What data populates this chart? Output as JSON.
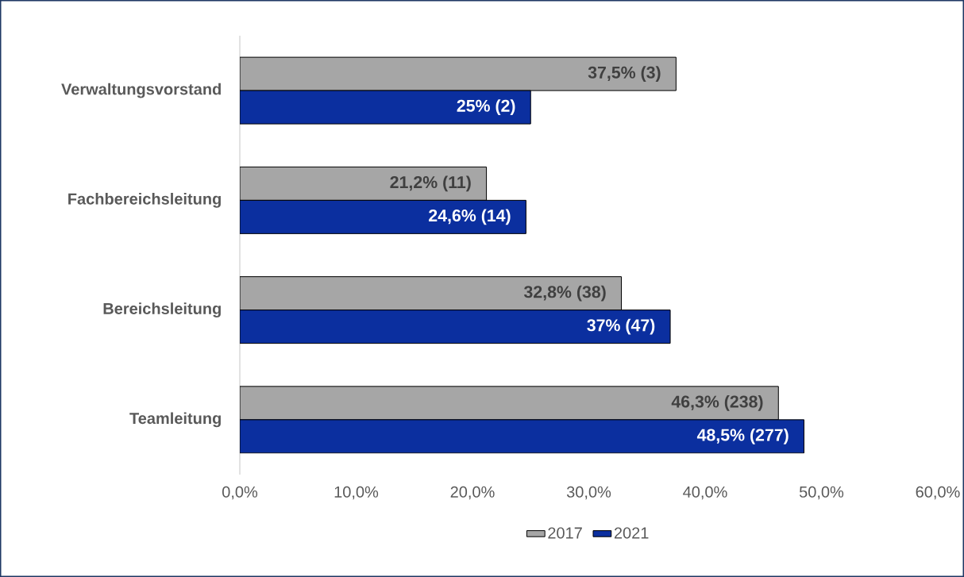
{
  "chart_data": {
    "type": "bar",
    "orientation": "horizontal",
    "categories": [
      "Verwaltungsvorstand",
      "Fachbereichsleitung",
      "Bereichsleitung",
      "Teamleitung"
    ],
    "series": [
      {
        "name": "2017",
        "color": "#a6a6a6",
        "values": [
          37.5,
          21.2,
          32.8,
          46.3
        ],
        "value_labels": [
          "37,5% (3)",
          "21,2% (11)",
          "32,8% (38)",
          "46,3% (238)"
        ]
      },
      {
        "name": "2021",
        "color": "#0b2f9f",
        "values": [
          25,
          24.6,
          37,
          48.5
        ],
        "value_labels": [
          "25% (2)",
          "24,6% (14)",
          "37% (47)",
          "48,5% (277)"
        ]
      }
    ],
    "xlim": [
      0,
      60
    ],
    "xticks": [
      {
        "value": 0,
        "label": "0,0%"
      },
      {
        "value": 10,
        "label": "10,0%"
      },
      {
        "value": 20,
        "label": "20,0%"
      },
      {
        "value": 30,
        "label": "30,0%"
      },
      {
        "value": 40,
        "label": "40,0%"
      },
      {
        "value": 50,
        "label": "50,0%"
      },
      {
        "value": 60,
        "label": "60,0%"
      }
    ],
    "legend": "bottom"
  }
}
